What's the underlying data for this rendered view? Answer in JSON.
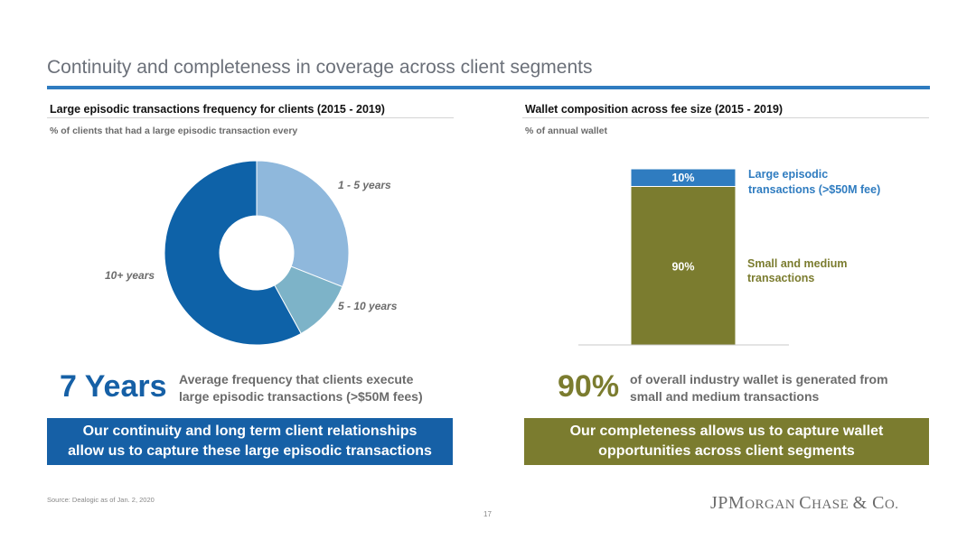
{
  "slide": {
    "title": "Continuity and completeness in coverage across client segments",
    "source": "Source: Dealogic as of Jan. 2, 2020",
    "page_number": "17",
    "logo_text": "JPMORGAN CHASE & CO."
  },
  "left": {
    "heading": "Large episodic transactions frequency for clients (2015 - 2019)",
    "subheading": "% of clients that had a large episodic transaction every",
    "stat_value": "7 Years",
    "stat_text_line1": "Average frequency that clients execute",
    "stat_text_line2": "large episodic transactions (>$50M fees)",
    "banner_line1": "Our continuity and long term client relationships",
    "banner_line2": "allow us to capture these large episodic transactions",
    "banner_color": "#1660a6"
  },
  "right": {
    "heading": "Wallet composition across fee size (2015 - 2019)",
    "subheading": "% of annual wallet",
    "stat_value": "90%",
    "stat_text_line1": "of overall industry wallet is generated from",
    "stat_text_line2": "small and medium transactions",
    "banner_line1": "Our completeness allows us to capture wallet",
    "banner_line2": "opportunities across client segments",
    "banner_color": "#7b7c2f"
  },
  "chart_data": [
    {
      "type": "pie",
      "variant": "donut",
      "slices": [
        {
          "label": "1 - 5 years",
          "value": 31,
          "color": "#8fb8dc"
        },
        {
          "label": "5 - 10 years",
          "value": 11,
          "color": "#7db3c8"
        },
        {
          "label": "10+ years",
          "value": 58,
          "color": "#0e62a8"
        }
      ]
    },
    {
      "type": "bar",
      "stacked": true,
      "series": [
        {
          "name": "Small and medium transactions",
          "values": [
            90
          ],
          "label": "90%",
          "color": "#7b7c2f"
        },
        {
          "name": "Large episodic transactions (>$50M fee)",
          "values": [
            10
          ],
          "label": "10%",
          "color": "#2f7cc0"
        }
      ],
      "legend": {
        "top_line1": "Large episodic",
        "top_line2": "transactions (>$50M fee)",
        "bottom_line1": "Small and medium",
        "bottom_line2": "transactions"
      }
    }
  ]
}
